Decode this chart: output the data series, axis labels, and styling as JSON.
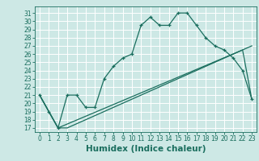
{
  "xlabel": "Humidex (Indice chaleur)",
  "background_color": "#cde8e5",
  "grid_color": "#ffffff",
  "line_color": "#1a6e5e",
  "xlim": [
    -0.5,
    23.5
  ],
  "ylim": [
    16.5,
    31.8
  ],
  "xticks": [
    0,
    1,
    2,
    3,
    4,
    5,
    6,
    7,
    8,
    9,
    10,
    11,
    12,
    13,
    14,
    15,
    16,
    17,
    18,
    19,
    20,
    21,
    22,
    23
  ],
  "yticks": [
    17,
    18,
    19,
    20,
    21,
    22,
    23,
    24,
    25,
    26,
    27,
    28,
    29,
    30,
    31
  ],
  "series1_x": [
    0,
    1,
    2,
    3,
    4,
    5,
    6,
    7,
    8,
    9,
    10,
    11,
    12,
    13,
    14,
    15,
    16,
    17,
    18,
    19,
    20,
    21,
    22,
    23
  ],
  "series1_y": [
    21,
    19,
    17,
    21,
    21,
    19.5,
    19.5,
    23,
    24.5,
    25.5,
    26,
    29.5,
    30.5,
    29.5,
    29.5,
    31,
    31,
    29.5,
    28,
    27,
    26.5,
    25.5,
    24,
    20.5
  ],
  "series2_x": [
    0,
    2,
    3,
    4,
    5,
    6,
    7,
    8,
    9,
    10,
    11,
    12,
    13,
    14,
    15,
    16,
    17,
    18,
    19,
    20,
    21,
    22,
    23
  ],
  "series2_y": [
    21,
    17,
    17,
    17.5,
    18,
    18.5,
    19,
    19.5,
    20,
    20.5,
    21,
    21.5,
    22,
    22.5,
    23,
    23.5,
    24,
    24.5,
    25,
    25.5,
    26,
    26.5,
    27
  ],
  "series3_x": [
    0,
    2,
    22,
    23
  ],
  "series3_y": [
    21,
    17,
    26.5,
    20.5
  ],
  "font_color": "#1a6e5e",
  "tick_fontsize": 5.5,
  "label_fontsize": 7.5
}
